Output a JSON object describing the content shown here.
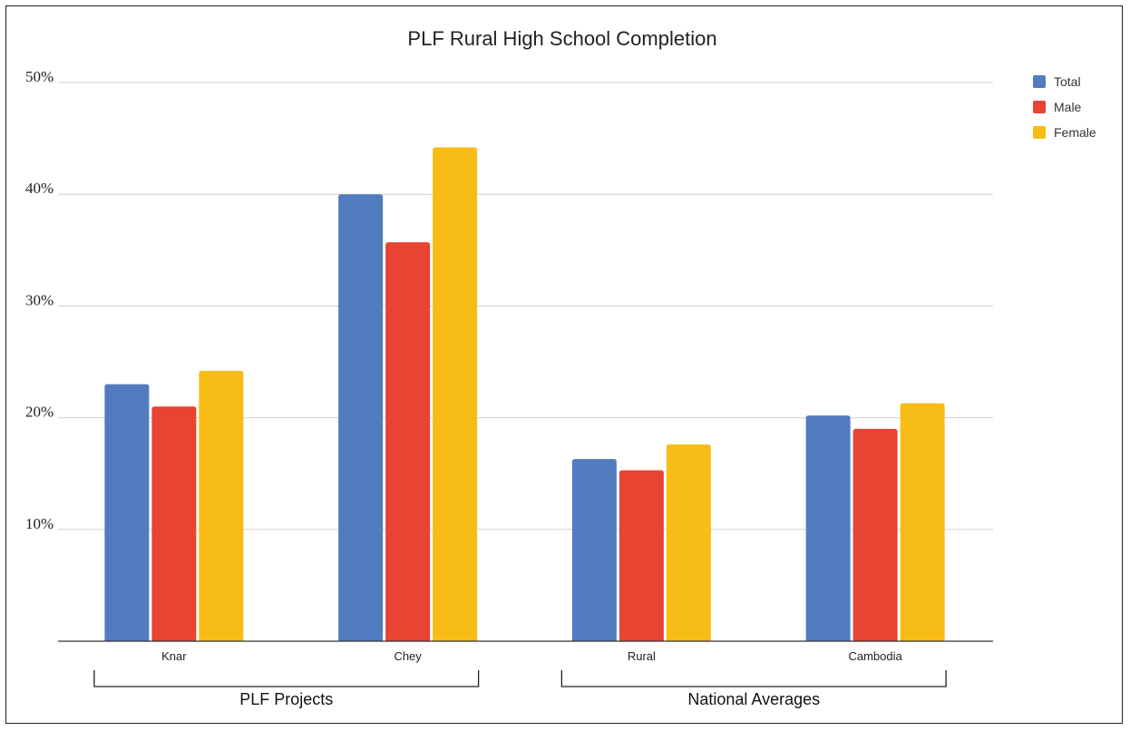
{
  "chart_data": {
    "type": "bar",
    "title": "PLF Rural High School Completion",
    "categories": [
      "Knar",
      "Chey",
      "Rural",
      "Cambodia"
    ],
    "series": [
      {
        "name": "Total",
        "color": "#517cc0",
        "values": [
          23.0,
          40.0,
          16.3,
          20.2
        ]
      },
      {
        "name": "Male",
        "color": "#e84433",
        "values": [
          21.0,
          35.7,
          15.3,
          19.0
        ]
      },
      {
        "name": "Female",
        "color": "#f8bc16",
        "values": [
          24.2,
          44.2,
          17.6,
          21.3
        ]
      }
    ],
    "ylim": [
      0,
      50
    ],
    "yticks": [
      {
        "value": 10,
        "label": "10%"
      },
      {
        "value": 20,
        "label": "20%"
      },
      {
        "value": 30,
        "label": "30%"
      },
      {
        "value": 40,
        "label": "40%"
      },
      {
        "value": 50,
        "label": "50%"
      }
    ],
    "grid": true,
    "legend_position": "right",
    "groups": [
      {
        "label": "PLF Projects",
        "categories": [
          "Knar",
          "Chey"
        ]
      },
      {
        "label": "National Averages",
        "categories": [
          "Rural",
          "Cambodia"
        ]
      }
    ]
  }
}
